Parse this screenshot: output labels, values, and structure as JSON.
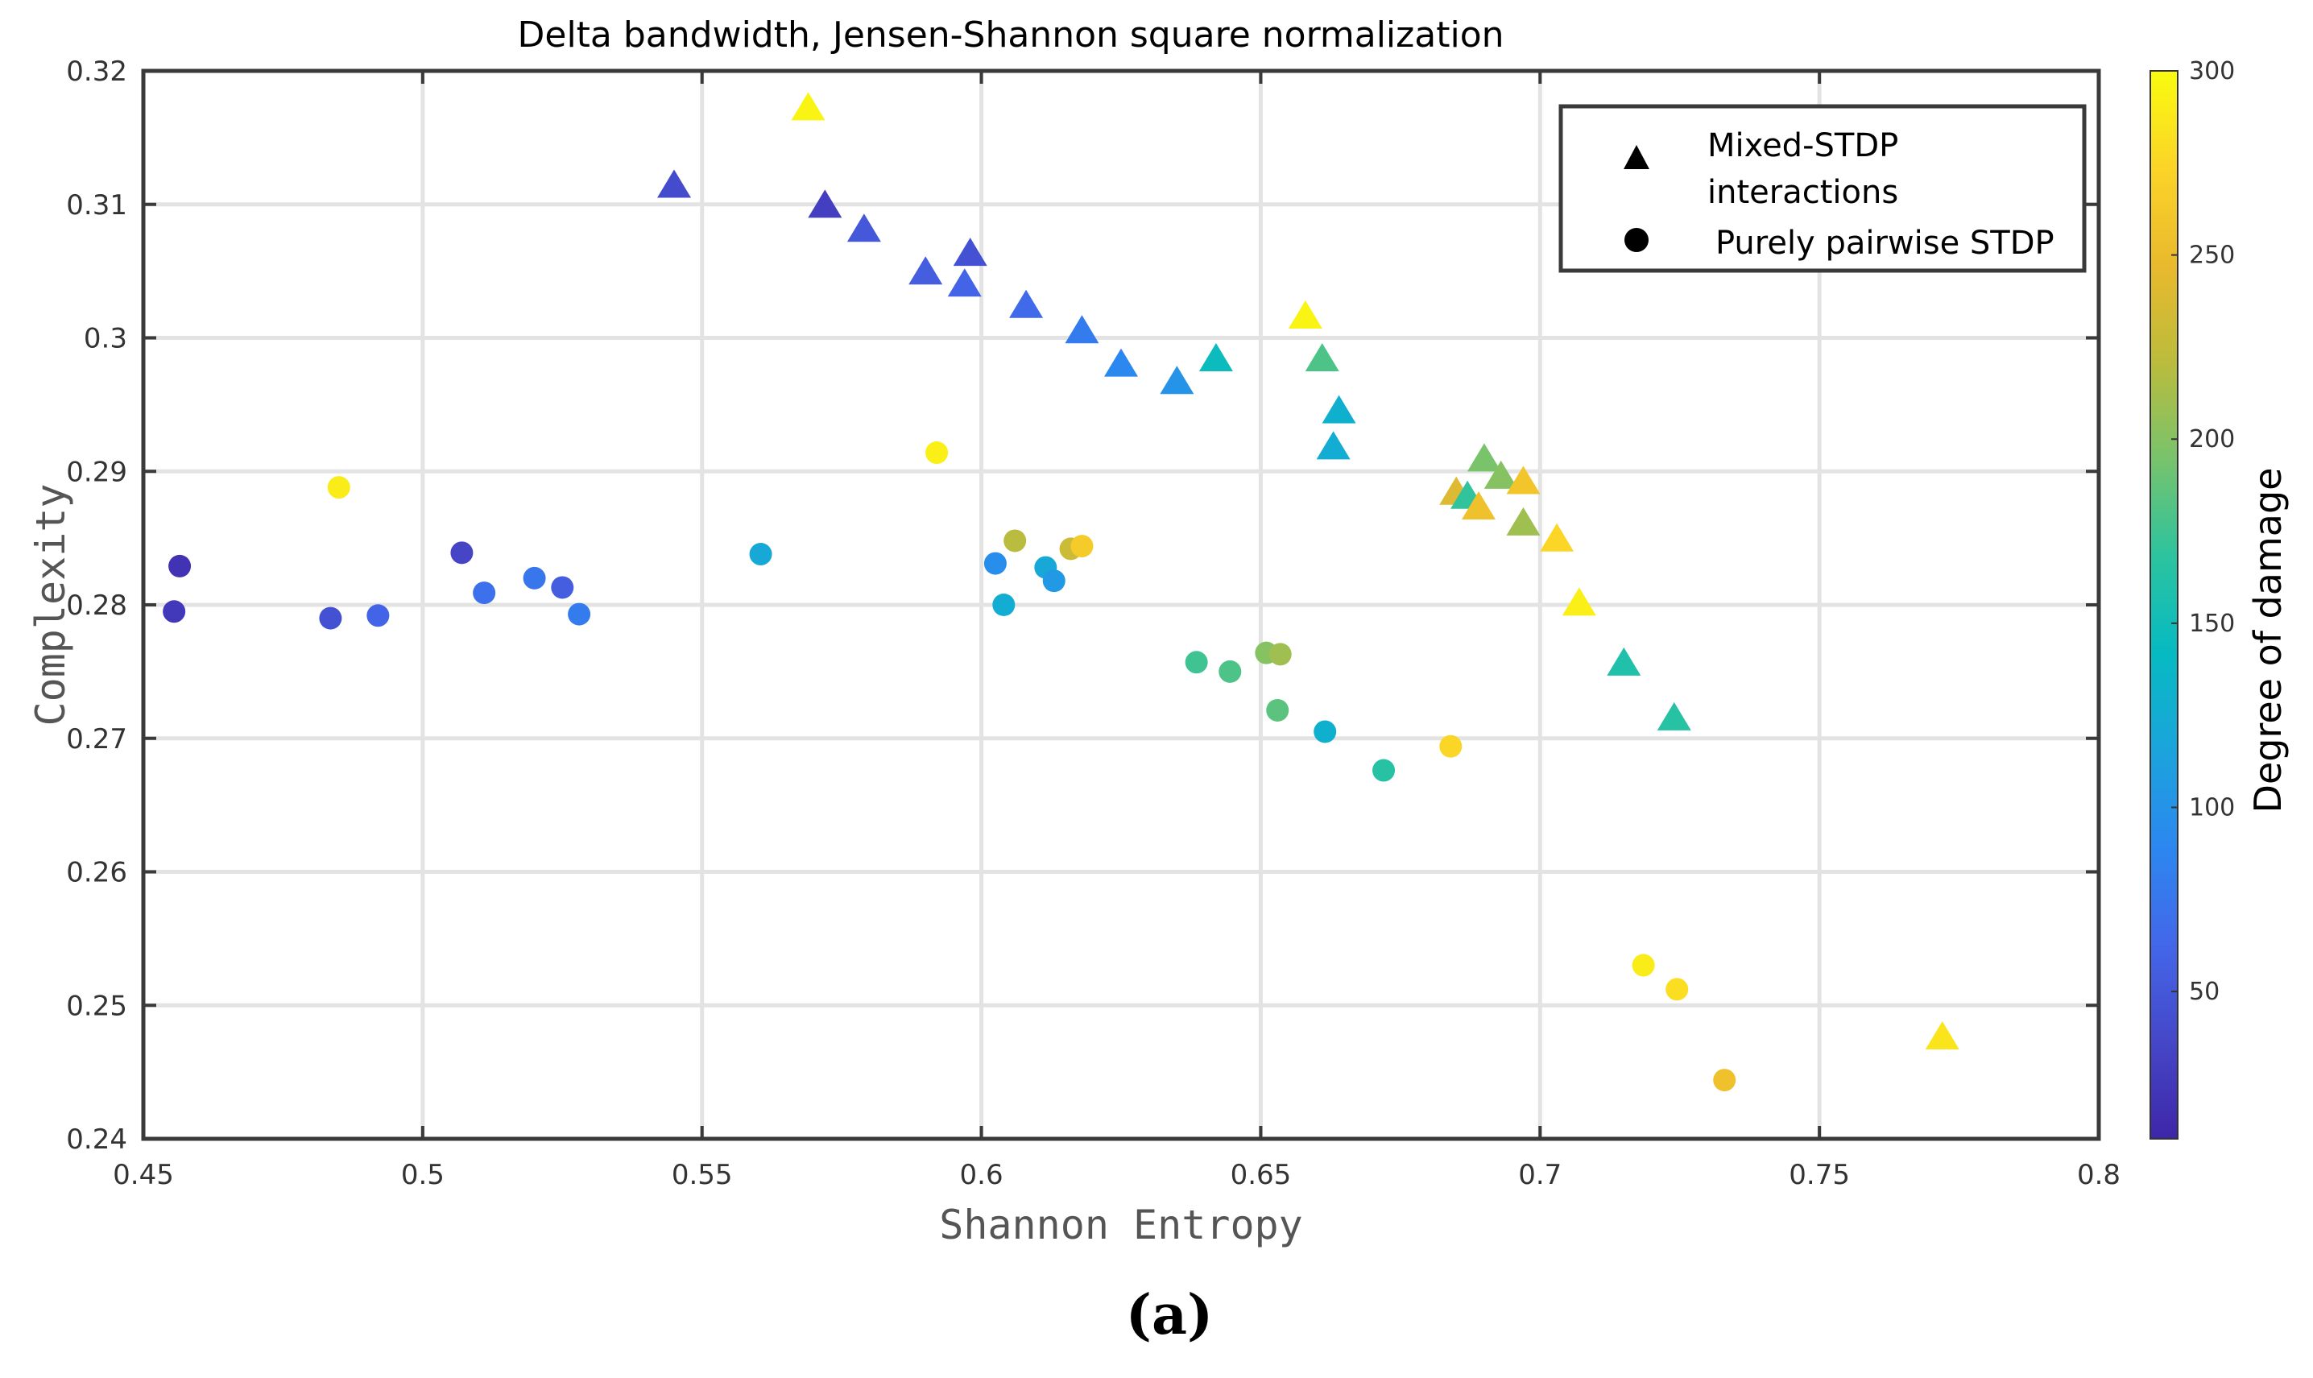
{
  "panel_label": "(a)",
  "chart_data": {
    "type": "scatter",
    "title": "Delta bandwidth, Jensen-Shannon square normalization",
    "xlabel": "Shannon Entropy",
    "ylabel": "Complexity",
    "xlim": [
      0.45,
      0.8
    ],
    "ylim": [
      0.24,
      0.32
    ],
    "xticks": [
      0.45,
      0.5,
      0.55,
      0.6,
      0.65,
      0.7,
      0.75,
      0.8
    ],
    "xtick_labels": [
      "0.45",
      "0.5",
      "0.55",
      "0.6",
      "0.65",
      "0.7",
      "0.75",
      "0.8"
    ],
    "yticks": [
      0.24,
      0.25,
      0.26,
      0.27,
      0.28,
      0.29,
      0.3,
      0.31,
      0.32
    ],
    "ytick_labels": [
      "0.24",
      "0.25",
      "0.26",
      "0.27",
      "0.28",
      "0.29",
      "0.3",
      "0.31",
      "0.32"
    ],
    "grid": true,
    "legend": {
      "position": "top-right",
      "entries": [
        {
          "marker": "triangle",
          "label_lines": [
            "Mixed-STDP",
            "interactions"
          ]
        },
        {
          "marker": "circle",
          "label_lines": [
            "Purely pairwise STDP"
          ]
        }
      ]
    },
    "colorbar": {
      "label": "Degree of damage",
      "range": [
        10,
        300
      ],
      "ticks": [
        50,
        100,
        150,
        200,
        250,
        300
      ],
      "tick_labels": [
        "50",
        "100",
        "150",
        "200",
        "250",
        "300"
      ],
      "colormap": [
        "#3e26a8",
        "#4547c8",
        "#4367e9",
        "#2c87f0",
        "#1ba4dc",
        "#06bac2",
        "#2cc39f",
        "#78c36c",
        "#bbbc3c",
        "#eab92d",
        "#fbd428",
        "#f9fb0e"
      ]
    },
    "series": [
      {
        "name": "Mixed-STDP interactions",
        "marker": "triangle",
        "points": [
          {
            "x": 0.569,
            "y": 0.3172,
            "damage": 295
          },
          {
            "x": 0.545,
            "y": 0.3114,
            "damage": 40
          },
          {
            "x": 0.572,
            "y": 0.3099,
            "damage": 30
          },
          {
            "x": 0.579,
            "y": 0.3081,
            "damage": 50
          },
          {
            "x": 0.59,
            "y": 0.3049,
            "damage": 55
          },
          {
            "x": 0.598,
            "y": 0.3063,
            "damage": 45
          },
          {
            "x": 0.597,
            "y": 0.304,
            "damage": 60
          },
          {
            "x": 0.608,
            "y": 0.3024,
            "damage": 65
          },
          {
            "x": 0.618,
            "y": 0.3005,
            "damage": 80
          },
          {
            "x": 0.625,
            "y": 0.298,
            "damage": 90
          },
          {
            "x": 0.635,
            "y": 0.2967,
            "damage": 100
          },
          {
            "x": 0.642,
            "y": 0.2984,
            "damage": 145
          },
          {
            "x": 0.658,
            "y": 0.3016,
            "damage": 295
          },
          {
            "x": 0.661,
            "y": 0.2984,
            "damage": 180
          },
          {
            "x": 0.664,
            "y": 0.2945,
            "damage": 130
          },
          {
            "x": 0.663,
            "y": 0.2918,
            "damage": 125
          },
          {
            "x": 0.69,
            "y": 0.2909,
            "damage": 195
          },
          {
            "x": 0.693,
            "y": 0.2896,
            "damage": 200
          },
          {
            "x": 0.697,
            "y": 0.2892,
            "damage": 260
          },
          {
            "x": 0.685,
            "y": 0.2884,
            "damage": 240
          },
          {
            "x": 0.687,
            "y": 0.2881,
            "damage": 170
          },
          {
            "x": 0.689,
            "y": 0.2873,
            "damage": 255
          },
          {
            "x": 0.697,
            "y": 0.2861,
            "damage": 210
          },
          {
            "x": 0.703,
            "y": 0.2849,
            "damage": 275
          },
          {
            "x": 0.707,
            "y": 0.2801,
            "damage": 292
          },
          {
            "x": 0.715,
            "y": 0.2756,
            "damage": 160
          },
          {
            "x": 0.724,
            "y": 0.2715,
            "damage": 165
          },
          {
            "x": 0.772,
            "y": 0.2476,
            "damage": 285
          }
        ]
      },
      {
        "name": "Purely pairwise STDP",
        "marker": "circle",
        "points": [
          {
            "x": 0.4565,
            "y": 0.2829,
            "damage": 20
          },
          {
            "x": 0.4555,
            "y": 0.2795,
            "damage": 25
          },
          {
            "x": 0.485,
            "y": 0.2888,
            "damage": 290
          },
          {
            "x": 0.4835,
            "y": 0.279,
            "damage": 45
          },
          {
            "x": 0.492,
            "y": 0.2792,
            "damage": 60
          },
          {
            "x": 0.507,
            "y": 0.2839,
            "damage": 35
          },
          {
            "x": 0.511,
            "y": 0.2809,
            "damage": 70
          },
          {
            "x": 0.52,
            "y": 0.282,
            "damage": 75
          },
          {
            "x": 0.525,
            "y": 0.2813,
            "damage": 55
          },
          {
            "x": 0.528,
            "y": 0.2793,
            "damage": 80
          },
          {
            "x": 0.5605,
            "y": 0.2838,
            "damage": 120
          },
          {
            "x": 0.592,
            "y": 0.2914,
            "damage": 292
          },
          {
            "x": 0.6025,
            "y": 0.2831,
            "damage": 95
          },
          {
            "x": 0.606,
            "y": 0.2848,
            "damage": 220
          },
          {
            "x": 0.616,
            "y": 0.2842,
            "damage": 230
          },
          {
            "x": 0.618,
            "y": 0.2844,
            "damage": 265
          },
          {
            "x": 0.604,
            "y": 0.28,
            "damage": 125
          },
          {
            "x": 0.6115,
            "y": 0.2828,
            "damage": 120
          },
          {
            "x": 0.613,
            "y": 0.2818,
            "damage": 105
          },
          {
            "x": 0.6385,
            "y": 0.2757,
            "damage": 175
          },
          {
            "x": 0.6445,
            "y": 0.275,
            "damage": 180
          },
          {
            "x": 0.651,
            "y": 0.2764,
            "damage": 200
          },
          {
            "x": 0.6535,
            "y": 0.2763,
            "damage": 210
          },
          {
            "x": 0.653,
            "y": 0.2721,
            "damage": 185
          },
          {
            "x": 0.6615,
            "y": 0.2705,
            "damage": 130
          },
          {
            "x": 0.672,
            "y": 0.2676,
            "damage": 165
          },
          {
            "x": 0.684,
            "y": 0.2694,
            "damage": 275
          },
          {
            "x": 0.7185,
            "y": 0.253,
            "damage": 290
          },
          {
            "x": 0.7245,
            "y": 0.2512,
            "damage": 280
          },
          {
            "x": 0.733,
            "y": 0.2444,
            "damage": 255
          }
        ]
      }
    ]
  }
}
